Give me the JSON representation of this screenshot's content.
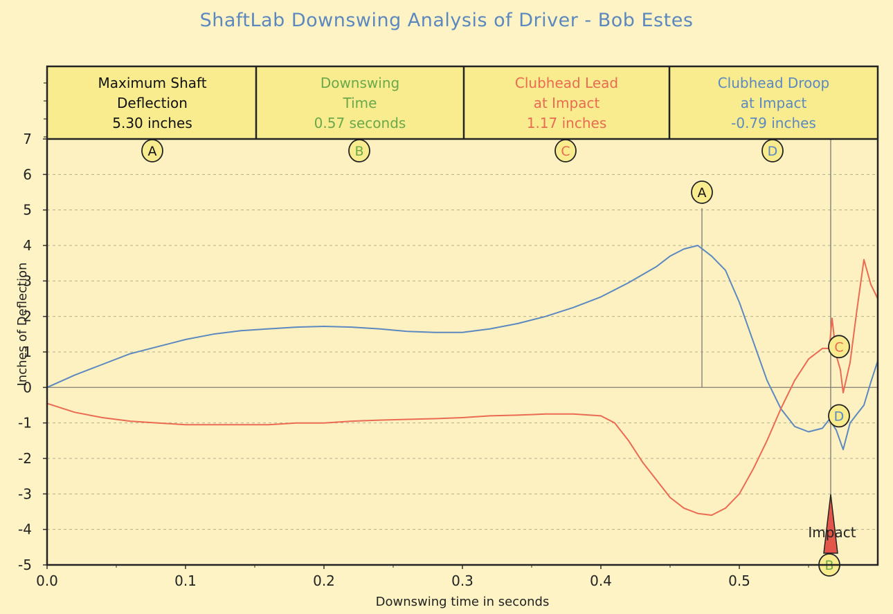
{
  "title": "ShaftLab Downswing Analysis of Driver - Bob Estes",
  "colors": {
    "background": "#fdf3c4",
    "plot_area": "#fdf1c2",
    "header_fill": "#f8ec8e",
    "blue": "#5c88c0",
    "red": "#ea6a52",
    "green": "#6aa84a",
    "badge_fill": "#f8ec8e"
  },
  "metrics": [
    {
      "title1": "Maximum Shaft",
      "title2": "Deflection",
      "value": "5.30 inches",
      "color": "#111111",
      "marker": "A"
    },
    {
      "title1": "Downswing",
      "title2": "Time",
      "value": "0.57 seconds",
      "color": "#6aa84a",
      "marker": "B"
    },
    {
      "title1": "Clubhead Lead",
      "title2": "at Impact",
      "value": "1.17 inches",
      "color": "#ea6a52",
      "marker": "C"
    },
    {
      "title1": "Clubhead Droop",
      "title2": "at Impact",
      "value": "-0.79 inches",
      "color": "#5c88c0",
      "marker": "D"
    }
  ],
  "chart_data": {
    "type": "line",
    "xlabel": "Downswing time in seconds",
    "ylabel": "Inches of Deflection",
    "xlim": [
      0,
      0.6
    ],
    "ylim": [
      -5,
      7
    ],
    "xticks": [
      "0.0",
      "0.1",
      "0.2",
      "0.3",
      "0.4",
      "0.5"
    ],
    "yticks": [
      "7",
      "6",
      "5",
      "4",
      "3",
      "2",
      "1",
      "0",
      "-1",
      "-2",
      "-3",
      "-4",
      "-5"
    ],
    "grid": true,
    "series": [
      {
        "color": "#5c88c0",
        "x": [
          0,
          0.02,
          0.04,
          0.06,
          0.08,
          0.1,
          0.12,
          0.14,
          0.16,
          0.18,
          0.2,
          0.22,
          0.24,
          0.26,
          0.28,
          0.3,
          0.32,
          0.34,
          0.36,
          0.38,
          0.4,
          0.42,
          0.44,
          0.45,
          0.46,
          0.47,
          0.48,
          0.49,
          0.5,
          0.51,
          0.52,
          0.53,
          0.54,
          0.55,
          0.56,
          0.565,
          0.57,
          0.575,
          0.58,
          0.585,
          0.59,
          0.595,
          0.6
        ],
        "y": [
          0,
          0.35,
          0.65,
          0.95,
          1.15,
          1.35,
          1.5,
          1.6,
          1.65,
          1.7,
          1.72,
          1.7,
          1.65,
          1.58,
          1.55,
          1.55,
          1.65,
          1.8,
          2.0,
          2.25,
          2.55,
          2.95,
          3.4,
          3.7,
          3.9,
          4.0,
          3.7,
          3.3,
          2.4,
          1.3,
          0.2,
          -0.6,
          -1.1,
          -1.25,
          -1.15,
          -0.9,
          -1.2,
          -1.75,
          -1.0,
          -0.75,
          -0.5,
          0.15,
          0.75
        ]
      },
      {
        "color": "#ea6a52",
        "x": [
          0,
          0.02,
          0.04,
          0.06,
          0.08,
          0.1,
          0.12,
          0.14,
          0.16,
          0.18,
          0.2,
          0.22,
          0.24,
          0.26,
          0.28,
          0.3,
          0.32,
          0.34,
          0.36,
          0.38,
          0.4,
          0.41,
          0.42,
          0.43,
          0.44,
          0.45,
          0.46,
          0.47,
          0.48,
          0.49,
          0.5,
          0.51,
          0.52,
          0.53,
          0.54,
          0.55,
          0.56,
          0.565,
          0.567,
          0.57,
          0.573,
          0.575,
          0.58,
          0.585,
          0.59,
          0.595,
          0.6
        ],
        "y": [
          -0.45,
          -0.7,
          -0.85,
          -0.95,
          -1.0,
          -1.05,
          -1.05,
          -1.05,
          -1.05,
          -1.0,
          -1.0,
          -0.95,
          -0.92,
          -0.9,
          -0.88,
          -0.85,
          -0.8,
          -0.78,
          -0.75,
          -0.75,
          -0.8,
          -1.0,
          -1.5,
          -2.1,
          -2.6,
          -3.1,
          -3.4,
          -3.55,
          -3.6,
          -3.4,
          -3.0,
          -2.3,
          -1.5,
          -0.6,
          0.2,
          0.8,
          1.1,
          1.1,
          1.95,
          0.9,
          0.5,
          -0.15,
          0.7,
          2.2,
          3.6,
          2.9,
          2.5
        ]
      }
    ],
    "annotations": [
      {
        "label": "A",
        "x": 0.473,
        "y": 5.5,
        "color": "#111111"
      },
      {
        "label": "C",
        "x": 0.572,
        "y": 1.15,
        "color": "#ea6a52"
      },
      {
        "label": "D",
        "x": 0.572,
        "y": -0.8,
        "color": "#5c88c0"
      },
      {
        "label": "B",
        "x": 0.565,
        "y": -5.0,
        "color": "#6aa84a"
      }
    ],
    "max_line_x": 0.473,
    "impact_x": 0.566,
    "impact_label": "Impact"
  }
}
